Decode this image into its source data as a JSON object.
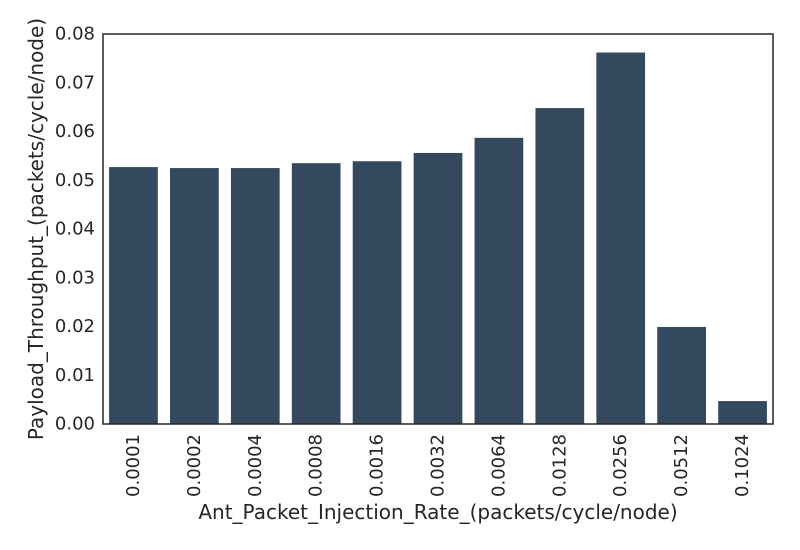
{
  "chart_data": {
    "type": "bar",
    "title": "",
    "xlabel": "Ant_Packet_Injection_Rate_(packets/cycle/node)",
    "ylabel": "Payload_Throughput_(packets/cycle/node)",
    "categories": [
      "0.0001",
      "0.0002",
      "0.0004",
      "0.0008",
      "0.0016",
      "0.0032",
      "0.0064",
      "0.0128",
      "0.0256",
      "0.0512",
      "0.1024"
    ],
    "values": [
      0.0527,
      0.0525,
      0.0525,
      0.0535,
      0.0539,
      0.0556,
      0.0587,
      0.0648,
      0.0762,
      0.0199,
      0.0047
    ],
    "ylim": [
      0,
      0.08
    ],
    "yticks": [
      "0.00",
      "0.01",
      "0.02",
      "0.03",
      "0.04",
      "0.05",
      "0.06",
      "0.07",
      "0.08"
    ],
    "bar_color": "#34495e",
    "grid": false,
    "legend": "none"
  }
}
